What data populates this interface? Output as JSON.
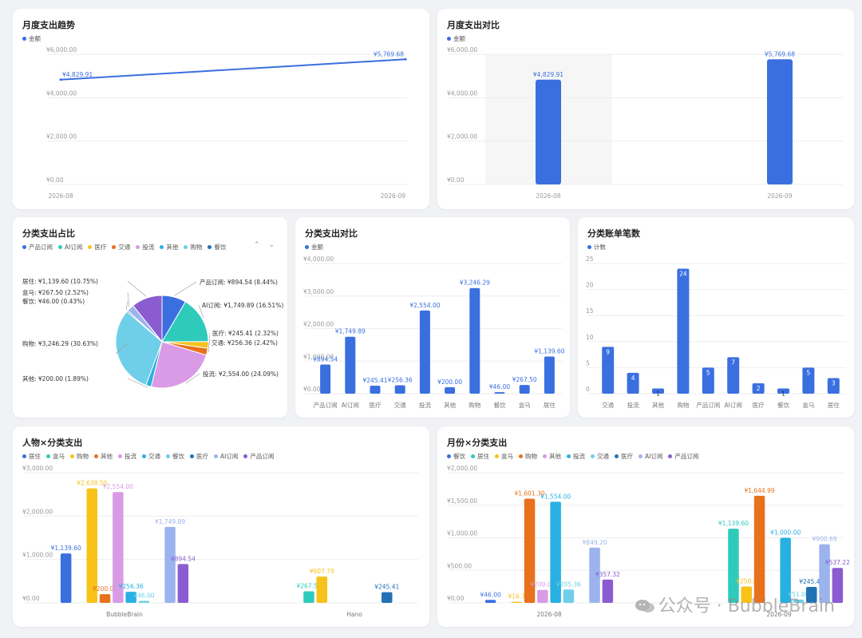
{
  "panels": [
    {
      "key": "trend",
      "title": "月度支出趋势",
      "legend": [
        {
          "label": "金额",
          "color": "#3a6fe0"
        }
      ],
      "chart_data": {
        "type": "line",
        "x": [
          "2026-08",
          "2026-09"
        ],
        "series": [
          {
            "name": "金额",
            "values": [
              4829.91,
              5769.68
            ],
            "labels": [
              "¥4,829.91",
              "¥5,769.68"
            ],
            "color": "#3a6fe0"
          }
        ],
        "yticks": [
          "¥0.00",
          "¥2,000.00",
          "¥4,000.00",
          "¥6,000.00"
        ],
        "ylim": [
          0,
          6000
        ]
      }
    },
    {
      "key": "monthbar",
      "title": "月度支出对比",
      "legend": [
        {
          "label": "金额",
          "color": "#3a6fe0"
        }
      ],
      "chart_data": {
        "type": "bar",
        "categories": [
          "2026-08",
          "2026-09"
        ],
        "series": [
          {
            "name": "金额",
            "values": [
              4829.91,
              5769.68
            ],
            "labels": [
              "¥4,829.91",
              "¥5,769.68"
            ],
            "color": "#3a6fe0"
          }
        ],
        "yticks": [
          "¥0.00",
          "¥2,000.00",
          "¥4,000.00",
          "¥6,000.00"
        ],
        "ylim": [
          0,
          6000
        ],
        "highlight_index": 0
      }
    },
    {
      "key": "pie",
      "title": "分类支出占比",
      "legend": [
        {
          "label": "产品订阅",
          "color": "#3b6fe0"
        },
        {
          "label": "AI订阅",
          "color": "#2ecbbb"
        },
        {
          "label": "医疗",
          "color": "#f7c21a"
        },
        {
          "label": "交通",
          "color": "#e8711d"
        },
        {
          "label": "投流",
          "color": "#d99be6"
        },
        {
          "label": "其他",
          "color": "#29b0e3"
        },
        {
          "label": "购物",
          "color": "#6fcfe8"
        },
        {
          "label": "餐饮",
          "color": "#2072b5"
        }
      ],
      "pager": "⌃ ⌄",
      "chart_data": {
        "type": "pie",
        "slices": [
          {
            "name": "产品订阅",
            "value": 894.54,
            "label": "产品订阅: ¥894.54 (8.44%)",
            "color": "#3b6fe0"
          },
          {
            "name": "AI订阅",
            "value": 1749.89,
            "label": "AI订阅: ¥1,749.89 (16.51%)",
            "color": "#2ecbbb"
          },
          {
            "name": "医疗",
            "value": 245.41,
            "label": "医疗: ¥245.41 (2.32%)",
            "color": "#f7c21a"
          },
          {
            "name": "交通",
            "value": 256.36,
            "label": "交通: ¥256.36 (2.42%)",
            "color": "#e8711d"
          },
          {
            "name": "投流",
            "value": 2554.0,
            "label": "投流: ¥2,554.00 (24.09%)",
            "color": "#d99be6"
          },
          {
            "name": "其他",
            "value": 200.0,
            "label": "其他: ¥200.00 (1.89%)",
            "color": "#29b0e3"
          },
          {
            "name": "购物",
            "value": 3246.29,
            "label": "购物: ¥3,246.29 (30.63%)",
            "color": "#6fcfe8"
          },
          {
            "name": "餐饮",
            "value": 46.0,
            "label": "餐饮: ¥46.00 (0.43%)",
            "color": "#2072b5"
          },
          {
            "name": "盒马",
            "value": 267.5,
            "label": "盒马: ¥267.50 (2.52%)",
            "color": "#9cb3ee"
          },
          {
            "name": "居住",
            "value": 1139.6,
            "label": "居住: ¥1,139.60 (10.75%)",
            "color": "#8a5cd0"
          }
        ]
      }
    },
    {
      "key": "catbar",
      "title": "分类支出对比",
      "legend": [
        {
          "label": "金额",
          "color": "#3a6fe0"
        }
      ],
      "chart_data": {
        "type": "bar",
        "categories": [
          "产品订阅",
          "AI订阅",
          "医疗",
          "交通",
          "投流",
          "其他",
          "购物",
          "餐饮",
          "盒马",
          "居住"
        ],
        "series": [
          {
            "name": "金额",
            "values": [
              894.54,
              1749.89,
              245.41,
              256.36,
              2554.0,
              200.0,
              3246.29,
              46.0,
              267.5,
              1139.6
            ],
            "labels": [
              "¥894.54",
              "¥1,749.89",
              "¥245.41",
              "¥256.36",
              "¥2,554.00",
              "¥200.00",
              "¥3,246.29",
              "¥46.00",
              "¥267.50",
              "¥1,139.60"
            ],
            "color": "#3a6fe0"
          }
        ],
        "yticks": [
          "¥0.00",
          "¥1,000.00",
          "¥2,000.00",
          "¥3,000.00",
          "¥4,000.00"
        ],
        "ylim": [
          0,
          4000
        ]
      }
    },
    {
      "key": "countbar",
      "title": "分类账单笔数",
      "legend": [
        {
          "label": "计数",
          "color": "#3a6fe0"
        }
      ],
      "chart_data": {
        "type": "bar",
        "categories": [
          "交通",
          "投流",
          "其他",
          "购物",
          "产品订阅",
          "AI订阅",
          "医疗",
          "餐饮",
          "盒马",
          "居住"
        ],
        "series": [
          {
            "name": "计数",
            "values": [
              9,
              4,
              1,
              24,
              5,
              7,
              2,
              1,
              5,
              3
            ],
            "labels": [
              "9",
              "4",
              "1",
              "24",
              "5",
              "7",
              "2",
              "1",
              "5",
              "3"
            ],
            "color": "#3a6fe0"
          }
        ],
        "yticks": [
          "0",
          "5",
          "10",
          "15",
          "20",
          "25"
        ],
        "ylim": [
          0,
          25
        ],
        "labels_inside": true
      }
    },
    {
      "key": "person",
      "title": "人物×分类支出",
      "legend": [
        {
          "label": "居住",
          "color": "#3a6fe0"
        },
        {
          "label": "盒马",
          "color": "#2ecbbb"
        },
        {
          "label": "购物",
          "color": "#f7c21a"
        },
        {
          "label": "其他",
          "color": "#e8711d"
        },
        {
          "label": "投流",
          "color": "#d99be6"
        },
        {
          "label": "交通",
          "color": "#29b0e3"
        },
        {
          "label": "餐饮",
          "color": "#6fcfe8"
        },
        {
          "label": "医疗",
          "color": "#2072b5"
        },
        {
          "label": "AI订阅",
          "color": "#9cb3ee"
        },
        {
          "label": "产品订阅",
          "color": "#8a5cd0"
        }
      ],
      "chart_data": {
        "type": "bar",
        "categories": [
          "BubbleBrain",
          "Hano"
        ],
        "yticks": [
          "¥0.00",
          "¥1,000.00",
          "¥2,000.00",
          "¥3,000.00"
        ],
        "ylim": [
          0,
          3000
        ],
        "series": [
          {
            "name": "居住",
            "color": "#3a6fe0",
            "values": [
              1139.6,
              0
            ],
            "labels": [
              "¥1,139.60",
              ""
            ]
          },
          {
            "name": "盒马",
            "color": "#2ecbbb",
            "values": [
              0,
              267.5
            ],
            "labels": [
              "",
              "¥267.50"
            ]
          },
          {
            "name": "购物",
            "color": "#f7c21a",
            "values": [
              2638.5,
              607.79
            ],
            "labels": [
              "¥2,638.50",
              "¥607.79"
            ]
          },
          {
            "name": "其他",
            "color": "#e8711d",
            "values": [
              200.0,
              0
            ],
            "labels": [
              "¥200.00",
              ""
            ]
          },
          {
            "name": "投流",
            "color": "#d99be6",
            "values": [
              2554.0,
              0
            ],
            "labels": [
              "¥2,554.00",
              ""
            ]
          },
          {
            "name": "交通",
            "color": "#29b0e3",
            "values": [
              256.36,
              0
            ],
            "labels": [
              "¥256.36",
              ""
            ]
          },
          {
            "name": "餐饮",
            "color": "#6fcfe8",
            "values": [
              46.0,
              0
            ],
            "labels": [
              "¥46.00",
              ""
            ]
          },
          {
            "name": "医疗",
            "color": "#2072b5",
            "values": [
              0,
              245.41
            ],
            "labels": [
              "",
              "¥245.41"
            ]
          },
          {
            "name": "AI订阅",
            "color": "#9cb3ee",
            "values": [
              1749.89,
              0
            ],
            "labels": [
              "¥1,749.89",
              ""
            ]
          },
          {
            "name": "产品订阅",
            "color": "#8a5cd0",
            "values": [
              894.54,
              0
            ],
            "labels": [
              "¥894.54",
              ""
            ]
          }
        ]
      }
    },
    {
      "key": "monthcat",
      "title": "月份×分类支出",
      "legend": [
        {
          "label": "餐饮",
          "color": "#3a6fe0"
        },
        {
          "label": "居住",
          "color": "#2ecbbb"
        },
        {
          "label": "盒马",
          "color": "#f7c21a"
        },
        {
          "label": "购物",
          "color": "#e8711d"
        },
        {
          "label": "其他",
          "color": "#d99be6"
        },
        {
          "label": "投流",
          "color": "#29b0e3"
        },
        {
          "label": "交通",
          "color": "#6fcfe8"
        },
        {
          "label": "医疗",
          "color": "#2072b5"
        },
        {
          "label": "AI订阅",
          "color": "#9cb3ee"
        },
        {
          "label": "产品订阅",
          "color": "#8a5cd0"
        }
      ],
      "chart_data": {
        "type": "bar",
        "categories": [
          "2026-08",
          "2026-09"
        ],
        "yticks": [
          "¥0.00",
          "¥500.00",
          "¥1,000.00",
          "¥1,500.00",
          "¥2,000.00"
        ],
        "ylim": [
          0,
          2000
        ],
        "series": [
          {
            "name": "餐饮",
            "color": "#3a6fe0",
            "values": [
              46.0,
              0
            ],
            "labels": [
              "¥46.00",
              ""
            ]
          },
          {
            "name": "居住",
            "color": "#2ecbbb",
            "values": [
              0,
              1139.6
            ],
            "labels": [
              "",
              "¥1,139.60"
            ]
          },
          {
            "name": "盒马",
            "color": "#f7c21a",
            "values": [
              16.7,
              250.8
            ],
            "labels": [
              "¥16.7",
              "¥250.8"
            ]
          },
          {
            "name": "购物",
            "color": "#e8711d",
            "values": [
              1601.3,
              1644.99
            ],
            "labels": [
              "¥1,601.30",
              "¥1,644.99"
            ]
          },
          {
            "name": "其他",
            "color": "#d99be6",
            "values": [
              200.0,
              0
            ],
            "labels": [
              "¥200.00",
              ""
            ]
          },
          {
            "name": "投流",
            "color": "#29b0e3",
            "values": [
              1554.0,
              1000.0
            ],
            "labels": [
              "¥1,554.00",
              "¥1,000.00"
            ]
          },
          {
            "name": "交通",
            "color": "#6fcfe8",
            "values": [
              205.36,
              51.0
            ],
            "labels": [
              "¥205.36",
              "¥51.00"
            ]
          },
          {
            "name": "医疗",
            "color": "#2072b5",
            "values": [
              0,
              245.41
            ],
            "labels": [
              "",
              "¥245.41"
            ]
          },
          {
            "name": "AI订阅",
            "color": "#9cb3ee",
            "values": [
              849.2,
              900.69
            ],
            "labels": [
              "¥849.20",
              "¥900.69"
            ]
          },
          {
            "name": "产品订阅",
            "color": "#8a5cd0",
            "values": [
              357.32,
              537.22
            ],
            "labels": [
              "¥357.32",
              "¥537.22"
            ]
          }
        ]
      }
    }
  ],
  "watermark": {
    "text": "公众号 · BubbleBrain",
    "icon": "wechat-icon"
  }
}
